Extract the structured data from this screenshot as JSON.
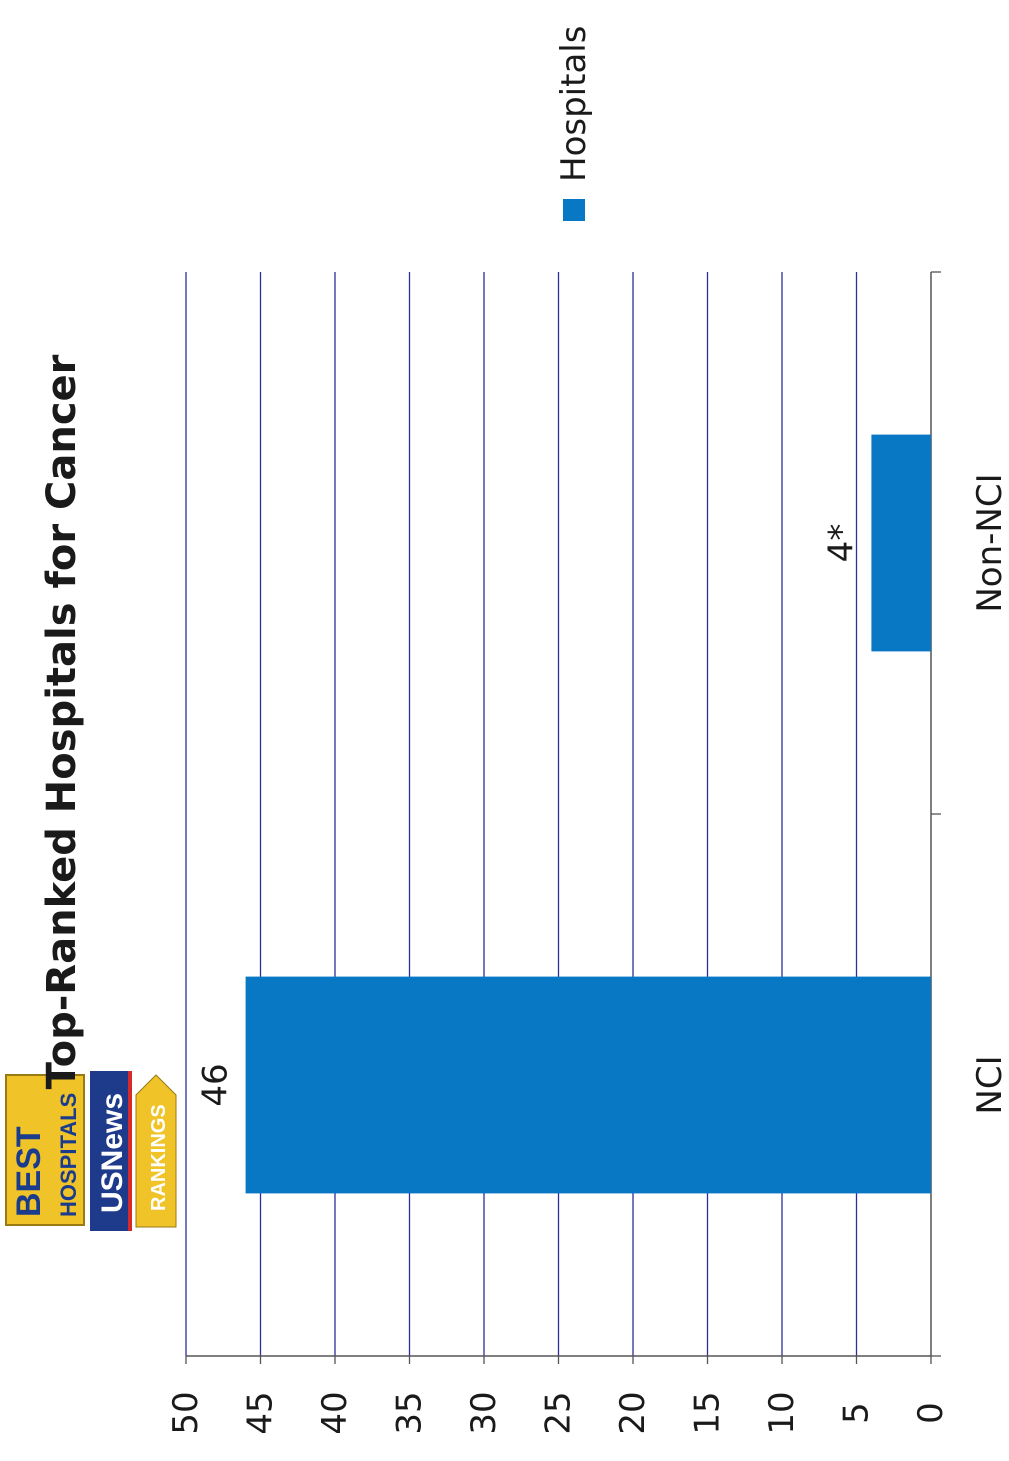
{
  "logo": {
    "line1": "BEST",
    "line2": "HOSPITALS",
    "line3": "USNews",
    "line4": "RANKINGS"
  },
  "chart_data": {
    "type": "bar",
    "orientation": "vertical bars, rendered in a page rotated 90 degrees counter-clockwise",
    "title": "Top-Ranked Hospitals for Cancer",
    "categories": [
      "NCI",
      "Non-NCI"
    ],
    "series": [
      {
        "name": "Hospitals",
        "values": [
          46,
          4
        ],
        "data_labels": [
          "46",
          "4*"
        ]
      }
    ],
    "xlabel": "",
    "ylabel": "",
    "ylim": [
      0,
      50
    ],
    "yticks": [
      0,
      5,
      10,
      15,
      20,
      25,
      30,
      35,
      40,
      45,
      50
    ],
    "grid": true,
    "legend_position": "right",
    "colors": {
      "bar": "#0877c4",
      "grid": "#2a2f9a",
      "axis": "#555555",
      "text": "#1a1a1a"
    }
  }
}
